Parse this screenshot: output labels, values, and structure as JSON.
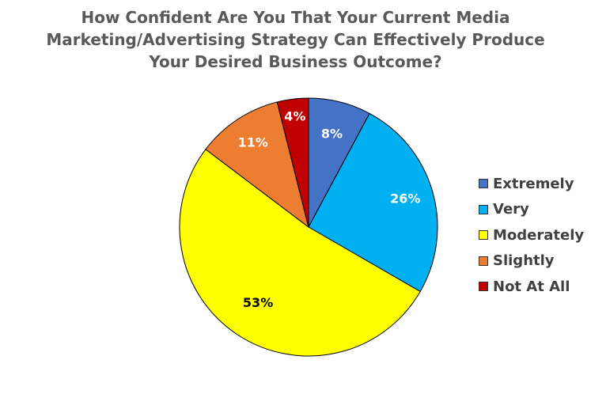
{
  "chart_data": {
    "type": "pie",
    "title": "How Confident Are You That Your Current Media\nMarketing/Advertising Strategy Can Effectively Produce\nYour Desired Business Outcome?",
    "slices": [
      {
        "name": "Extremely",
        "value": 8,
        "label": "8%",
        "color": "#4472C4",
        "label_color": "#ffffff"
      },
      {
        "name": "Very",
        "value": 26,
        "label": "26%",
        "color": "#00B0F0",
        "label_color": "#ffffff"
      },
      {
        "name": "Moderately",
        "value": 53,
        "label": "53%",
        "color": "#FFFF00",
        "label_color": "#000000"
      },
      {
        "name": "Slightly",
        "value": 11,
        "label": "11%",
        "color": "#ED7D31",
        "label_color": "#ffffff"
      },
      {
        "name": "Not At All",
        "value": 4,
        "label": "4%",
        "color": "#C00000",
        "label_color": "#ffffff"
      }
    ],
    "start_angle": "12 o'clock",
    "direction": "clockwise",
    "legend_position": "right"
  }
}
